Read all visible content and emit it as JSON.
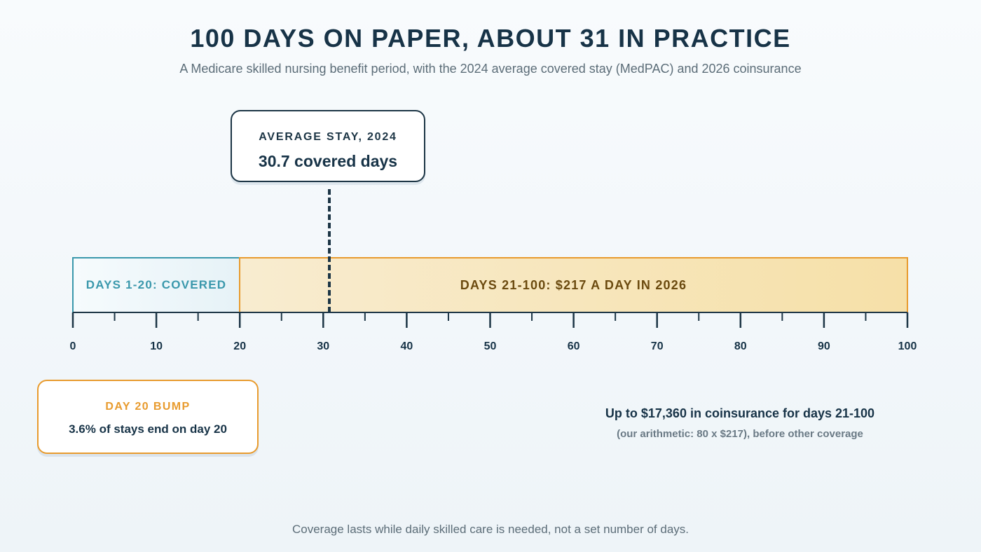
{
  "title": "100 DAYS ON PAPER, ABOUT 31 IN PRACTICE",
  "subtitle": "A Medicare skilled nursing benefit period, with the 2024 average covered stay (MedPAC) and 2026 coinsurance",
  "average_callout": {
    "label": "AVERAGE STAY, 2024",
    "value": "30.7 covered days",
    "day": 30.7
  },
  "segments": [
    {
      "label": "DAYS 1-20: COVERED",
      "start": 0,
      "end": 20,
      "color": "#3a98ac"
    },
    {
      "label": "DAYS 21-100: $217 A DAY IN 2026",
      "start": 20,
      "end": 100,
      "color": "#e89b2e"
    }
  ],
  "axis": {
    "min": 0,
    "max": 100,
    "major_ticks": [
      0,
      10,
      20,
      30,
      40,
      50,
      60,
      70,
      80,
      90,
      100
    ],
    "minor_ticks": [
      5,
      15,
      25,
      35,
      45,
      55,
      65,
      75,
      85,
      95
    ],
    "tick_labels": [
      "0",
      "10",
      "20",
      "30",
      "40",
      "50",
      "60",
      "70",
      "80",
      "90",
      "100"
    ]
  },
  "bump_callout": {
    "label": "DAY 20 BUMP",
    "value": "3.6% of stays end on day 20"
  },
  "cost_summary": {
    "headline": "Up to $17,360 in coinsurance for days 21-100",
    "note": "(our arithmetic: 80 x $217), before other coverage"
  },
  "footer": "Coverage lasts while daily skilled care is needed, not a set number of days.",
  "colors": {
    "navy": "#173347",
    "teal": "#3a98ac",
    "orange": "#e89b2e",
    "gold_text": "#6b4a0f"
  }
}
